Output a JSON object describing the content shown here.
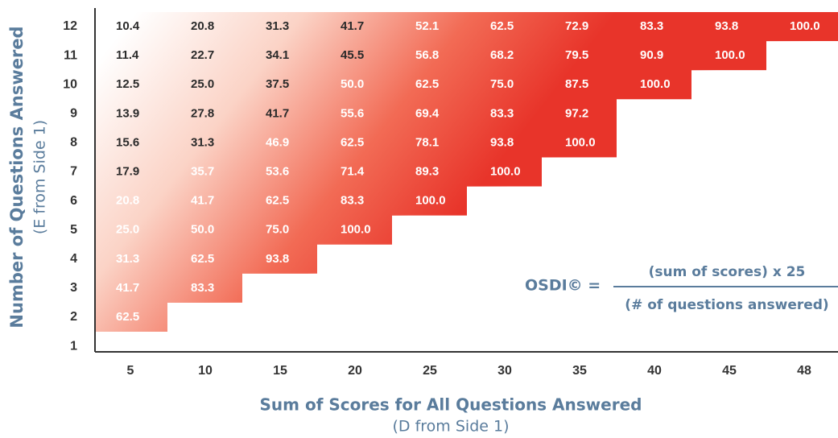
{
  "y_axis": {
    "title": "Number of Questions Answered",
    "subtitle": "(E from Side 1)"
  },
  "x_axis": {
    "title": "Sum of Scores for All Questions Answered",
    "subtitle": "(D from Side 1)"
  },
  "columns": [
    "5",
    "10",
    "15",
    "20",
    "25",
    "30",
    "35",
    "40",
    "45",
    "48"
  ],
  "rows": [
    {
      "label": "12",
      "cells": [
        "10.4",
        "20.8",
        "31.3",
        "41.7",
        "52.1",
        "62.5",
        "72.9",
        "83.3",
        "93.8",
        "100.0"
      ]
    },
    {
      "label": "11",
      "cells": [
        "11.4",
        "22.7",
        "34.1",
        "45.5",
        "56.8",
        "68.2",
        "79.5",
        "90.9",
        "100.0"
      ]
    },
    {
      "label": "10",
      "cells": [
        "12.5",
        "25.0",
        "37.5",
        "50.0",
        "62.5",
        "75.0",
        "87.5",
        "100.0"
      ]
    },
    {
      "label": "9",
      "cells": [
        "13.9",
        "27.8",
        "41.7",
        "55.6",
        "69.4",
        "83.3",
        "97.2"
      ]
    },
    {
      "label": "8",
      "cells": [
        "15.6",
        "31.3",
        "46.9",
        "62.5",
        "78.1",
        "93.8",
        "100.0"
      ]
    },
    {
      "label": "7",
      "cells": [
        "17.9",
        "35.7",
        "53.6",
        "71.4",
        "89.3",
        "100.0"
      ]
    },
    {
      "label": "6",
      "cells": [
        "20.8",
        "41.7",
        "62.5",
        "83.3",
        "100.0"
      ]
    },
    {
      "label": "5",
      "cells": [
        "25.0",
        "50.0",
        "75.0",
        "100.0"
      ]
    },
    {
      "label": "4",
      "cells": [
        "31.3",
        "62.5",
        "93.8"
      ]
    },
    {
      "label": "3",
      "cells": [
        "41.7",
        "83.3"
      ]
    },
    {
      "label": "2",
      "cells": [
        "62.5"
      ]
    },
    {
      "label": "1",
      "cells": []
    }
  ],
  "formula": {
    "lhs": "OSDI© =",
    "numerator": "(sum of scores) x 25",
    "denominator": "(# of questions answered)"
  }
}
